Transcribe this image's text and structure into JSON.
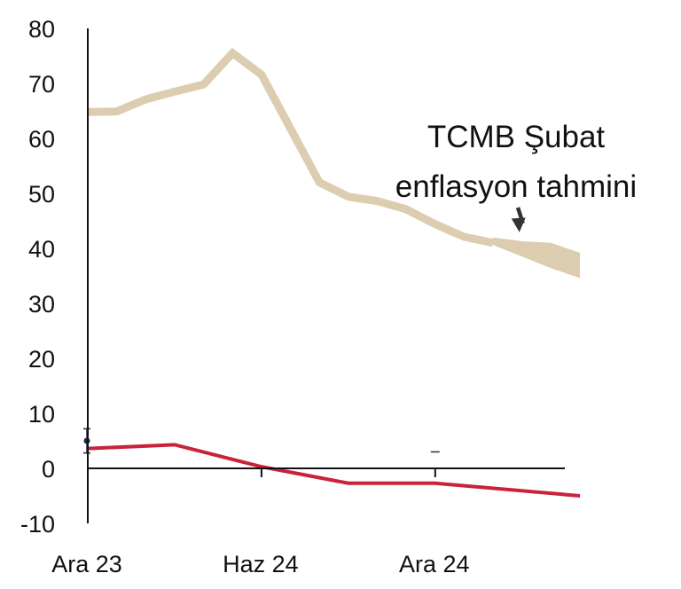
{
  "chart_data": {
    "type": "line",
    "title": "",
    "xlabel": "",
    "ylabel": "",
    "ylim": [
      -10,
      80
    ],
    "xlim": [
      "2023-12",
      "2025-05"
    ],
    "grid": false,
    "y_ticks": [
      "80",
      "70",
      "60",
      "50",
      "40",
      "30",
      "20",
      "10",
      "0",
      "-10"
    ],
    "x_ticks": [
      {
        "label": "Ara 23",
        "x": "2023-12"
      },
      {
        "label": "Haz 24",
        "x": "2024-06"
      },
      {
        "label": "Ara 24",
        "x": "2024-12"
      }
    ],
    "series": [
      {
        "color": "#dcccb0",
        "x": [
          "2023-12",
          "2024-01",
          "2024-02",
          "2024-03",
          "2024-04",
          "2024-05",
          "2024-06",
          "2024-07",
          "2024-08",
          "2024-09",
          "2024-10",
          "2024-11",
          "2024-12",
          "2025-01",
          "2025-02"
        ],
        "values": [
          64.8,
          64.9,
          67.1,
          68.5,
          69.8,
          75.5,
          71.6,
          61.8,
          52.0,
          49.4,
          48.6,
          47.1,
          44.4,
          42.1,
          41.0
        ]
      },
      {
        "color": "#c8233a",
        "x": [
          "2023-12",
          "2024-03",
          "2024-06",
          "2024-09",
          "2024-12",
          "2025-05"
        ],
        "values": [
          3.6,
          4.3,
          0.3,
          -2.7,
          -2.7,
          -5.0
        ]
      }
    ],
    "forecast_band": {
      "color": "#dcccb0",
      "x": [
        "2025-02",
        "2025-03",
        "2025-04",
        "2025-05"
      ],
      "upper": [
        42.0,
        41.3,
        41.0,
        39.2
      ],
      "lower": [
        40.6,
        38.5,
        36.4,
        34.6
      ]
    },
    "markers": {
      "errorbar": {
        "x": "2023-12",
        "value": 5.0,
        "low": 2.8,
        "high": 7.2,
        "color": "#1d2a3c"
      },
      "dash": {
        "x": "2024-12",
        "value": 3.0,
        "color": "#333333"
      }
    },
    "annotation": {
      "lines": [
        "TCMB Şubat",
        "enflasyon tahmini"
      ],
      "arrow_target": {
        "x": "2025-03",
        "value": 41.0
      }
    }
  }
}
